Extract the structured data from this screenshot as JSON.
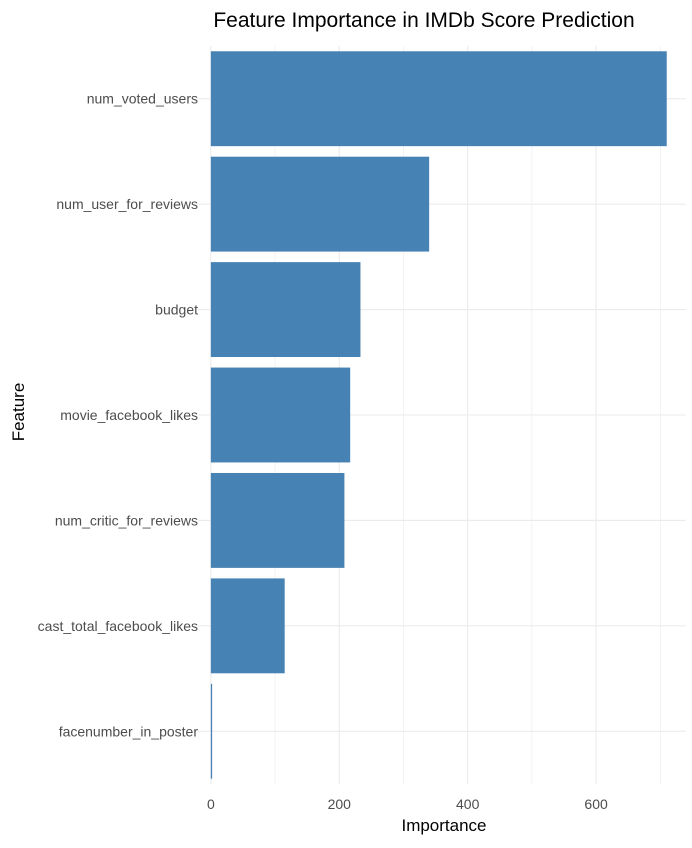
{
  "chart_data": {
    "type": "bar",
    "orientation": "horizontal",
    "title": "Feature Importance in IMDb Score Prediction",
    "xlabel": "Importance",
    "ylabel": "Feature",
    "categories": [
      "num_voted_users",
      "num_user_for_reviews",
      "budget",
      "movie_facebook_likes",
      "num_critic_for_reviews",
      "cast_total_facebook_likes",
      "facenumber_in_poster"
    ],
    "values": [
      710,
      340,
      233,
      217,
      208,
      115,
      2
    ],
    "xlim": [
      -20,
      740
    ],
    "xticks": [
      0,
      200,
      400,
      600
    ],
    "grid": true,
    "bar_color": "#4682b4",
    "grid_color": "#ebebeb"
  }
}
